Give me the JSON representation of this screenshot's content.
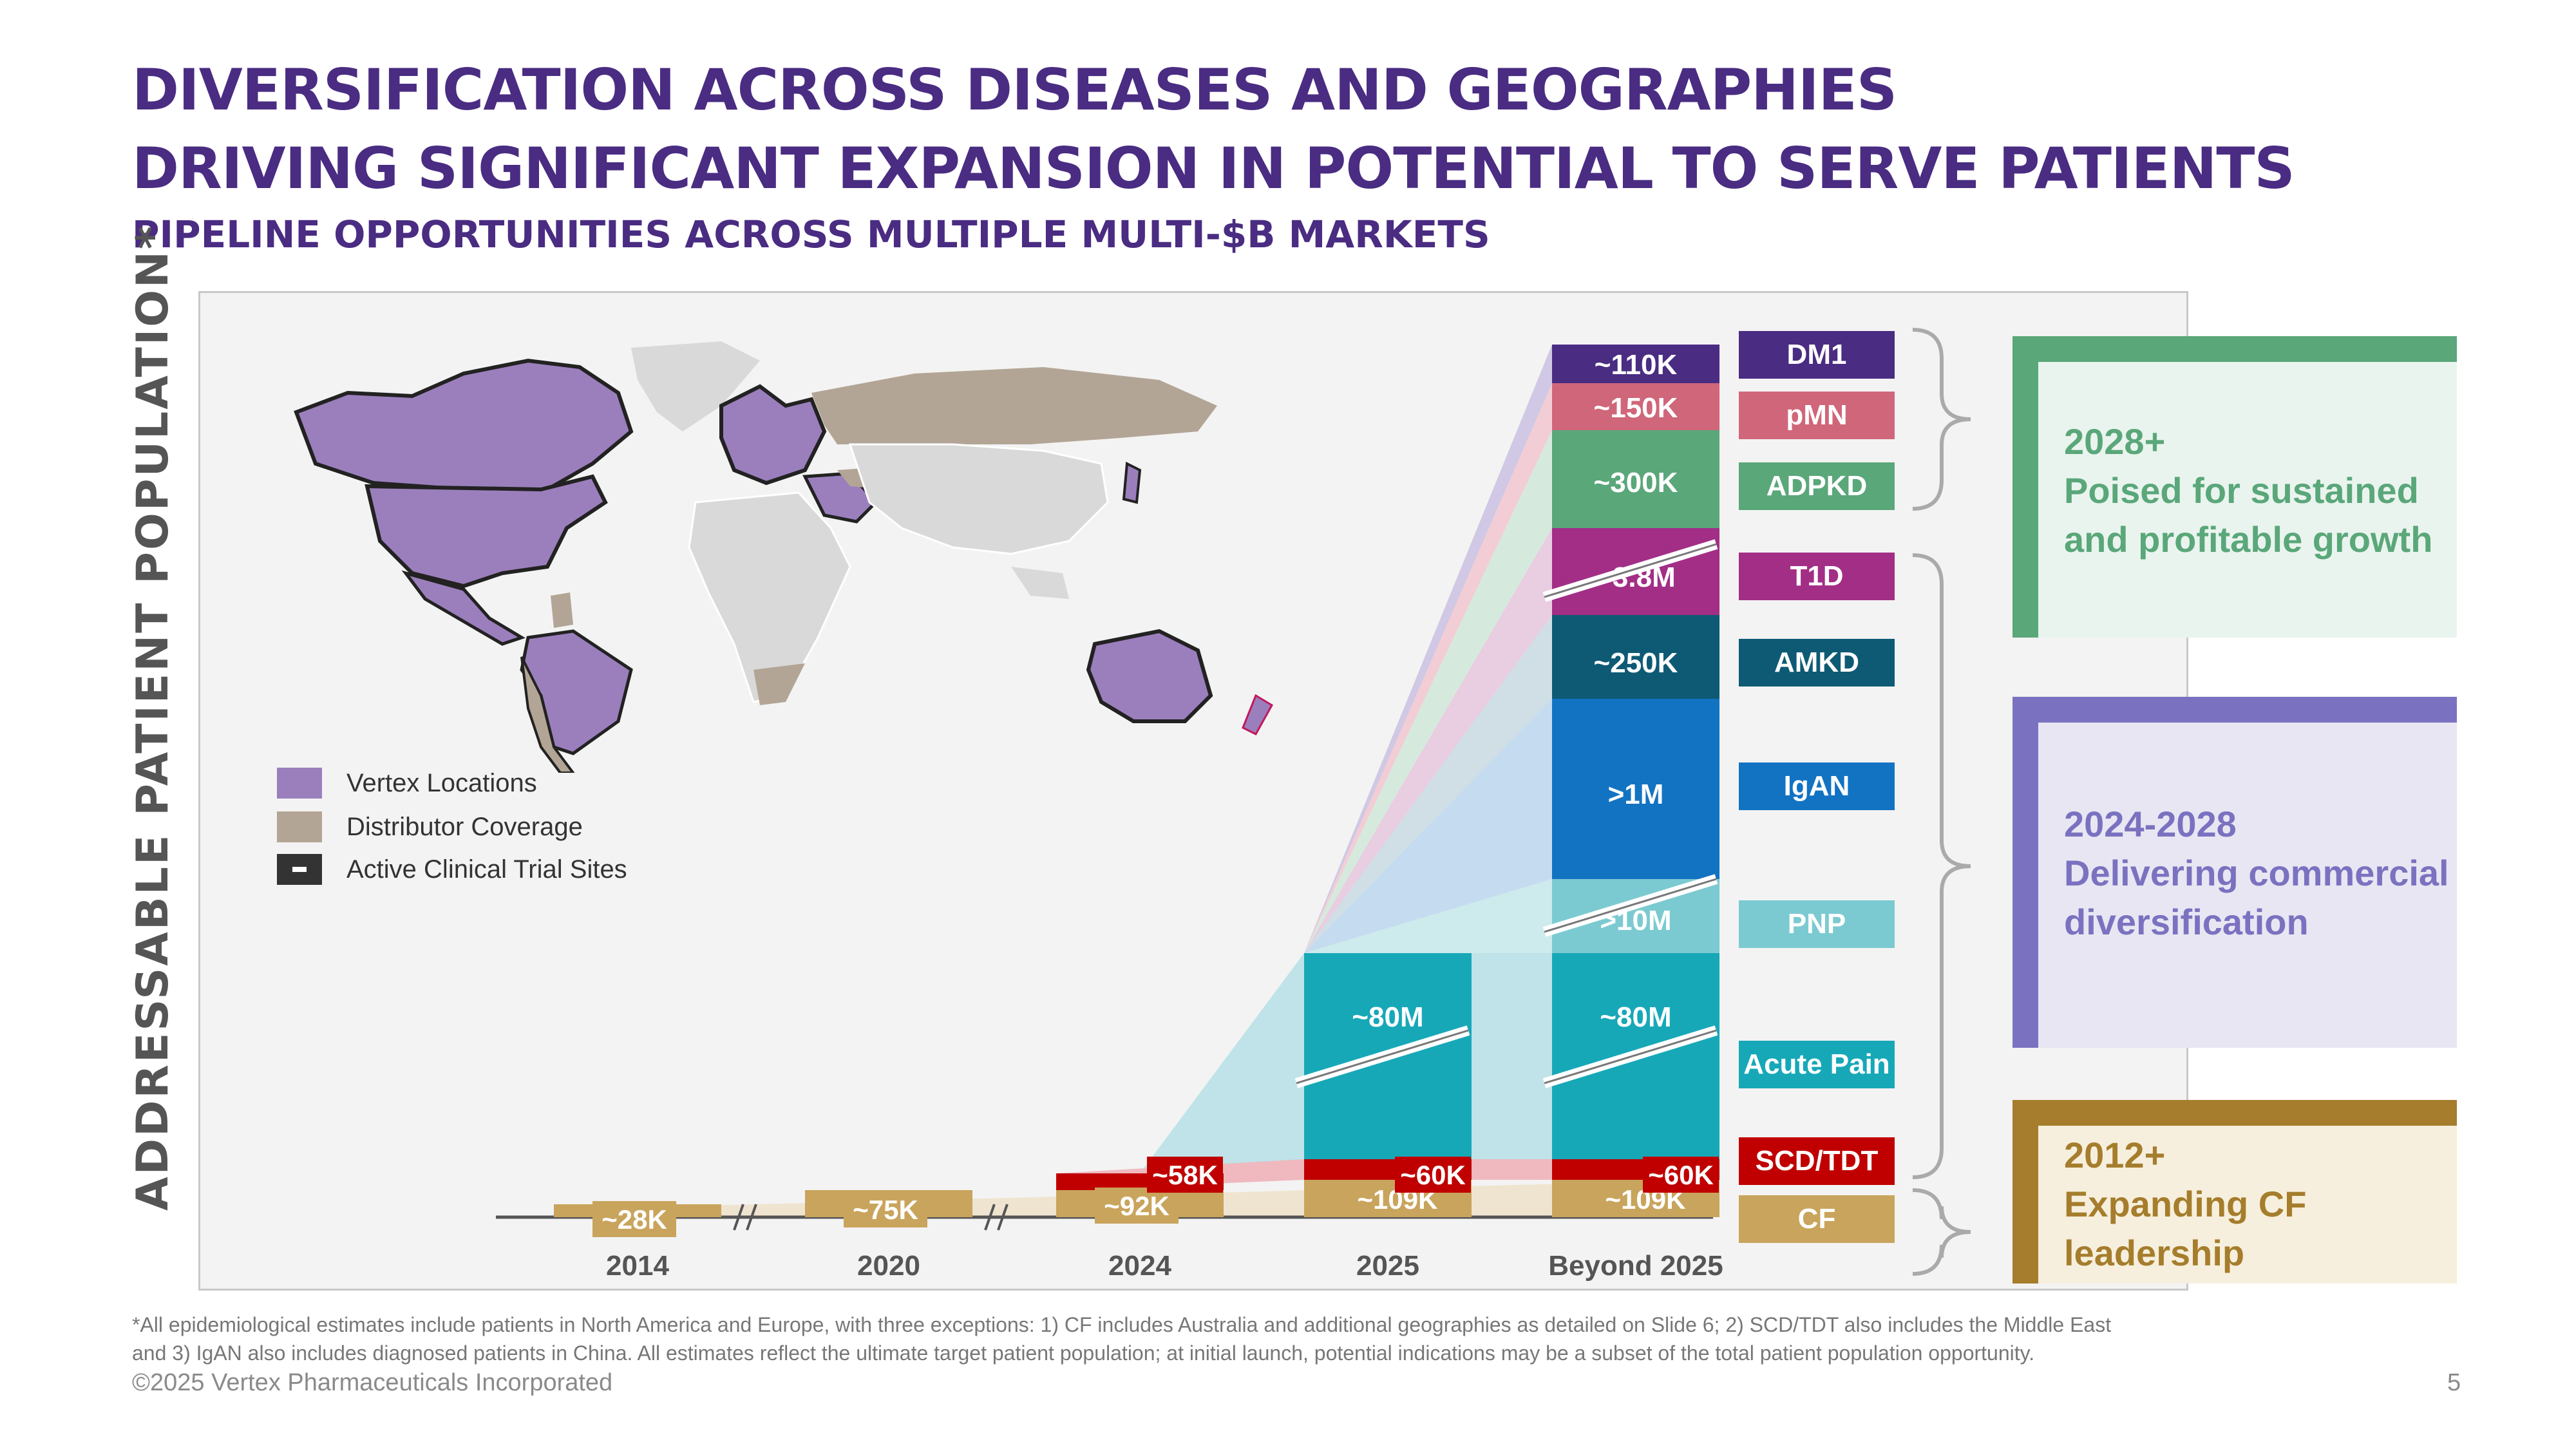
{
  "titles": {
    "line1": "DIVERSIFICATION ACROSS DISEASES AND GEOGRAPHIES",
    "line2": "DRIVING SIGNIFICANT EXPANSION IN POTENTIAL TO SERVE PATIENTS",
    "subtitle": "PIPELINE OPPORTUNITIES ACROSS MULTIPLE MULTI-$B MARKETS"
  },
  "ylabel": "ADDRESSABLE PATIENT POPULATION*",
  "legend": [
    {
      "label": "Vertex Locations",
      "color": "#9b7fbd",
      "icon": "purple-swatch"
    },
    {
      "label": "Distributor Coverage",
      "color": "#b3a595",
      "icon": "tan-swatch"
    },
    {
      "label": "Active Clinical Trial Sites",
      "color": "#333333",
      "icon": "trial-site-swatch"
    }
  ],
  "chart_data": {
    "type": "bar",
    "categories": [
      "2014",
      "2020",
      "2024",
      "2025",
      "Beyond 2025"
    ],
    "note": "Stacked, non-linear scale (broken axis); values are addressable patient populations",
    "series": [
      {
        "name": "CF",
        "color": "#c9a45c",
        "labels": [
          "~28K",
          "~75K",
          "~92K",
          "~109K",
          "~109K"
        ]
      },
      {
        "name": "SCD/TDT",
        "color": "#c00000",
        "labels": [
          "",
          "",
          "~58K",
          "~60K",
          "~60K"
        ]
      },
      {
        "name": "Acute Pain",
        "color": "#17a8b8",
        "labels": [
          "",
          "",
          "",
          "~80M",
          "~80M"
        ]
      },
      {
        "name": "PNP",
        "color": "#7ccad1",
        "labels": [
          "",
          "",
          "",
          "",
          ">10M"
        ]
      },
      {
        "name": "IgAN",
        "color": "#1273c2",
        "labels": [
          "",
          "",
          "",
          "",
          ">1M"
        ]
      },
      {
        "name": "AMKD",
        "color": "#0e5a75",
        "labels": [
          "",
          "",
          "",
          "",
          "~250K"
        ]
      },
      {
        "name": "T1D",
        "color": "#a22e86",
        "labels": [
          "",
          "",
          "",
          "",
          "~3.8M"
        ]
      },
      {
        "name": "ADPKD",
        "color": "#5aa77a",
        "labels": [
          "",
          "",
          "",
          "",
          "~300K"
        ]
      },
      {
        "name": "pMN",
        "color": "#d0667a",
        "labels": [
          "",
          "",
          "",
          "",
          "~150K"
        ]
      },
      {
        "name": "DM1",
        "color": "#4a2c82",
        "labels": [
          "",
          "",
          "",
          "",
          "~110K"
        ]
      }
    ]
  },
  "disease_labels": [
    {
      "name": "DM1",
      "color": "#4a2c82"
    },
    {
      "name": "pMN",
      "color": "#d0667a"
    },
    {
      "name": "ADPKD",
      "color": "#5aa77a"
    },
    {
      "name": "T1D",
      "color": "#a22e86"
    },
    {
      "name": "AMKD",
      "color": "#0e5a75"
    },
    {
      "name": "IgAN",
      "color": "#1273c2"
    },
    {
      "name": "PNP",
      "color": "#7ccad1"
    },
    {
      "name": "Acute Pain",
      "color": "#17a8b8"
    },
    {
      "name": "SCD/TDT",
      "color": "#c00000"
    },
    {
      "name": "CF",
      "color": "#c9a45c"
    }
  ],
  "phases": [
    {
      "period": "2028+",
      "desc_line1": "Poised for  sustained",
      "desc_line2": "and profitable growth",
      "color": "#5aa77a",
      "bg": "#eaf4ee"
    },
    {
      "period": "2024-2028",
      "desc_line1": "Delivering commercial",
      "desc_line2": "diversification",
      "color": "#7a72c0",
      "bg": "#e8e6f2"
    },
    {
      "period": "2012+",
      "desc_line1": "Expanding CF",
      "desc_line2": "leadership",
      "color": "#a57d2c",
      "bg": "#f7efdd"
    }
  ],
  "footnote": {
    "line1": "*All epidemiological estimates include patients in North America and Europe, with three exceptions: 1)  CF includes Australia and additional geographies as detailed on Slide 6; 2) SCD/TDT also includes the Middle East",
    "line2": "and 3) IgAN also includes diagnosed patients in China.  All estimates reflect the ultimate target patient population; at initial launch, potential indications may be a subset of the total patient population opportunity."
  },
  "copyright": "©2025 Vertex Pharmaceuticals Incorporated",
  "page_number": "5"
}
